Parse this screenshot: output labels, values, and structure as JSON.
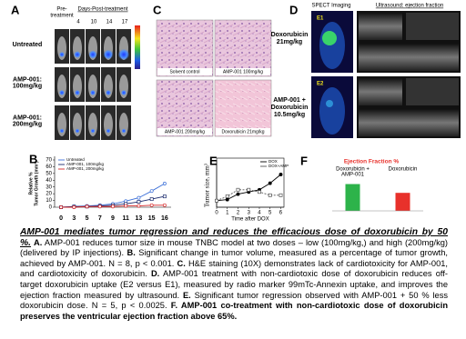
{
  "panels": {
    "A": {
      "letter": "A",
      "pre": [
        "Pre-",
        "treatment"
      ],
      "days": "Days-Post-treatment",
      "day_labels": [
        "4",
        "10",
        "14",
        "17"
      ],
      "rows": [
        [
          "Untreated"
        ],
        [
          "AMP-001:",
          "100mg/kg"
        ],
        [
          "AMP-001:",
          "200mg/kg"
        ]
      ]
    },
    "C": {
      "letter": "C",
      "images": [
        "Solvent control",
        "AMP-001 100mg/kg",
        "AMP-001 200mg/kg",
        "Doxorubicin 21mg/kg"
      ]
    },
    "D": {
      "letter": "D",
      "spect": "SPECT Imaging",
      "ultrasound": "Ultrasound: ejection fraction",
      "rows": [
        [
          "Doxorubicin",
          "21mg/kg"
        ],
        [
          "AMP-001 +",
          "Doxorubicin",
          "10.5mg/kg"
        ]
      ],
      "markers": [
        "E1",
        "E2"
      ]
    }
  },
  "chart_data": [
    {
      "type": "line",
      "panel": "B",
      "ylabel": [
        "Relative %",
        "Tumor Growth (mm³)"
      ],
      "categories": [
        "0",
        "3",
        "5",
        "7",
        "9",
        "11",
        "13",
        "15",
        "16"
      ],
      "ylim": [
        0,
        70
      ],
      "yticks": [
        0,
        10,
        20,
        30,
        40,
        50,
        60,
        70
      ],
      "legend": "upper left",
      "series": [
        {
          "name": "Untreated",
          "color": "#3b6fd8",
          "values": [
            0,
            1,
            2,
            3,
            5,
            9,
            14,
            24,
            35
          ]
        },
        {
          "name": "AMP-001, 100mg/kg",
          "color": "#1a2a6c",
          "values": [
            0,
            1,
            1,
            2,
            3,
            5,
            8,
            12,
            16
          ]
        },
        {
          "name": "AMP-001, 200mg/kg",
          "color": "#d62728",
          "values": [
            0,
            0,
            1,
            1,
            1,
            2,
            2,
            3,
            3
          ]
        }
      ]
    },
    {
      "type": "line",
      "panel": "E",
      "ylabel": [
        "Tumor size, mm³"
      ],
      "xlabel": "Time after DOX",
      "x": [
        0,
        1,
        2,
        3,
        4,
        5,
        6
      ],
      "xlim": [
        0,
        6.3
      ],
      "xticks": [
        0,
        1,
        2,
        3,
        4,
        5,
        6
      ],
      "ylim": [
        0,
        2000
      ],
      "legend": "upper right",
      "series": [
        {
          "name": "DOX",
          "color": "#000000",
          "values": [
            300,
            350,
            600,
            700,
            800,
            1100,
            1500
          ]
        },
        {
          "name": "DOX+AMP",
          "color": "#555555",
          "values": [
            300,
            500,
            800,
            800,
            700,
            550,
            550
          ]
        }
      ]
    },
    {
      "type": "bar",
      "panel": "F",
      "title": "Ejection Fraction %",
      "categories": [
        [
          "Doxorubicin +",
          "AMP-001"
        ],
        [
          "Doxorubicin"
        ]
      ],
      "values": [
        67,
        45
      ],
      "colors": [
        "#2db34a",
        "#e8312b"
      ],
      "ylim": [
        0,
        100
      ]
    }
  ],
  "caption": [
    {
      "text": "AMP-001 mediates tumor regression and reduces the efficacious dose of doxorubicin by 50 %.",
      "style": "title"
    },
    {
      "text": "A.",
      "style": "bold"
    },
    {
      "text": " AMP-001 reduces tumor size in mouse TNBC model at two doses – low (100mg/kg,) and high (200mg/kg) (delivered by IP injections). ",
      "style": "normal"
    },
    {
      "text": "B.",
      "style": "bold"
    },
    {
      "text": " Significant change in tumor volume, measured as a percentage of tumor growth, achieved by AMP-001. N = 8, p < 0.001. ",
      "style": "normal"
    },
    {
      "text": "C.",
      "style": "bold"
    },
    {
      "text": " H&E staining (10X) demonstrates lack of cardiotoxicity for AMP-001, and cardiotoxicity of doxorubicin. ",
      "style": "normal"
    },
    {
      "text": "D.",
      "style": "bold"
    },
    {
      "text": " AMP-001 treatment with non-cardiotoxic dose of doxorubicin reduces off-target doxorubicin uptake (E2 versus E1), measured by radio marker 99mTc-Annexin uptake, and improves the ejection fraction measured by ultrasound. ",
      "style": "normal"
    },
    {
      "text": "E.",
      "style": "bold"
    },
    {
      "text": " Significant tumor regression observed with AMP-001 + 50 % less doxorubicin dose. N = 5, p < 0.0025. ",
      "style": "normal"
    },
    {
      "text": "F.",
      "style": "bold"
    },
    {
      "text": " AMP-001 co-treatment with non-cardiotoxic dose of doxorubicin preserves the ventricular ejection fraction above 65%.",
      "style": "bold"
    }
  ]
}
